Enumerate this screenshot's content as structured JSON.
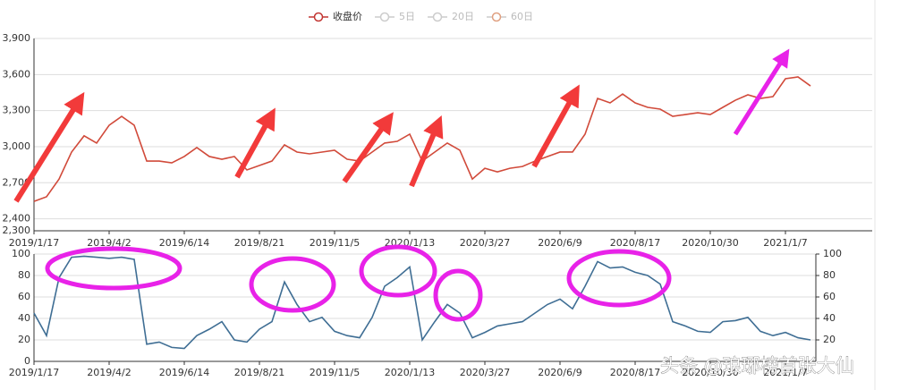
{
  "chart_data": [
    {
      "type": "line",
      "legend": [
        {
          "name": "收盘价",
          "color": "#c23531",
          "shown": true
        },
        {
          "name": "5日",
          "color": "#cccccc",
          "shown": false
        },
        {
          "name": "20日",
          "color": "#cccccc",
          "shown": false
        },
        {
          "name": "60日",
          "color": "#e0a080",
          "shown": false
        }
      ],
      "categories": [
        "2019/1/17",
        null,
        null,
        null,
        null,
        null,
        "2019/4/2",
        null,
        null,
        null,
        null,
        null,
        "2019/6/14",
        null,
        null,
        null,
        null,
        null,
        "2019/8/21",
        null,
        null,
        null,
        null,
        null,
        "2019/11/5",
        null,
        null,
        null,
        null,
        null,
        "2020/1/13",
        null,
        null,
        null,
        null,
        null,
        "2020/3/27",
        null,
        null,
        null,
        null,
        null,
        "2020/6/9",
        null,
        null,
        null,
        null,
        null,
        "2020/8/17",
        null,
        null,
        null,
        null,
        null,
        "2020/10/30",
        null,
        null,
        null,
        null,
        null,
        "2021/1/7",
        null,
        null
      ],
      "series": [
        {
          "name": "收盘价",
          "color": "#d14a3a",
          "values": [
            2545,
            2583,
            2730,
            2955,
            3090,
            3030,
            3178,
            3252,
            3178,
            2880,
            2880,
            2865,
            2918,
            2992,
            2918,
            2895,
            2918,
            2806,
            2843,
            2880,
            3015,
            2955,
            2940,
            2955,
            2970,
            2895,
            2880,
            2955,
            3030,
            3044,
            3104,
            2880,
            2955,
            3030,
            2970,
            2730,
            2820,
            2790,
            2820,
            2835,
            2880,
            2918,
            2955,
            2955,
            3104,
            3401,
            3364,
            3438,
            3364,
            3327,
            3312,
            3252,
            3267,
            3282,
            3267,
            3327,
            3386,
            3431,
            3401,
            3416,
            3565,
            3580,
            3505
          ]
        }
      ],
      "ylim": [
        2300,
        3900
      ],
      "yticks": [
        {
          "value": 2300,
          "label": "2,300"
        },
        {
          "value": 2400,
          "label": "2,400"
        },
        {
          "value": 2700,
          "label": "2,700"
        },
        {
          "value": 3000,
          "label": "3,000"
        },
        {
          "value": 3300,
          "label": "3,300"
        },
        {
          "value": 3600,
          "label": "3,600"
        },
        {
          "value": 3900,
          "label": "3,900"
        }
      ],
      "grid": true
    },
    {
      "type": "line",
      "categories": [
        "2019/1/17",
        null,
        null,
        null,
        null,
        null,
        "2019/4/2",
        null,
        null,
        null,
        null,
        null,
        "2019/6/14",
        null,
        null,
        null,
        null,
        null,
        "2019/8/21",
        null,
        null,
        null,
        null,
        null,
        "2019/11/5",
        null,
        null,
        null,
        null,
        null,
        "2020/1/13",
        null,
        null,
        null,
        null,
        null,
        "2020/3/27",
        null,
        null,
        null,
        null,
        null,
        "2020/6/9",
        null,
        null,
        null,
        null,
        null,
        "2020/8/17",
        null,
        null,
        null,
        null,
        null,
        "2020/10/30",
        null,
        null,
        null,
        null,
        null,
        "2021/1/7",
        null,
        null
      ],
      "series": [
        {
          "color": "#3f6e94",
          "values": [
            45,
            24,
            78,
            97,
            98,
            97,
            96,
            97,
            95,
            16,
            18,
            13,
            12,
            24,
            30,
            37,
            20,
            18,
            30,
            37,
            74,
            53,
            37,
            41,
            28,
            24,
            22,
            41,
            70,
            78,
            88,
            20,
            37,
            53,
            45,
            22,
            27,
            33,
            35,
            37,
            45,
            53,
            58,
            49,
            70,
            93,
            87,
            88,
            83,
            80,
            72,
            37,
            33,
            28,
            27,
            37,
            38,
            41,
            28,
            24,
            27,
            22,
            20
          ]
        }
      ],
      "ylim": [
        0,
        100
      ],
      "yticks": [
        0,
        20,
        40,
        60,
        80,
        100
      ],
      "y2lim": [
        0,
        100
      ],
      "y2ticks": [
        20,
        40,
        60,
        80,
        100
      ],
      "grid": true
    }
  ],
  "watermark": "头条 @琅琊榜首张大仙"
}
